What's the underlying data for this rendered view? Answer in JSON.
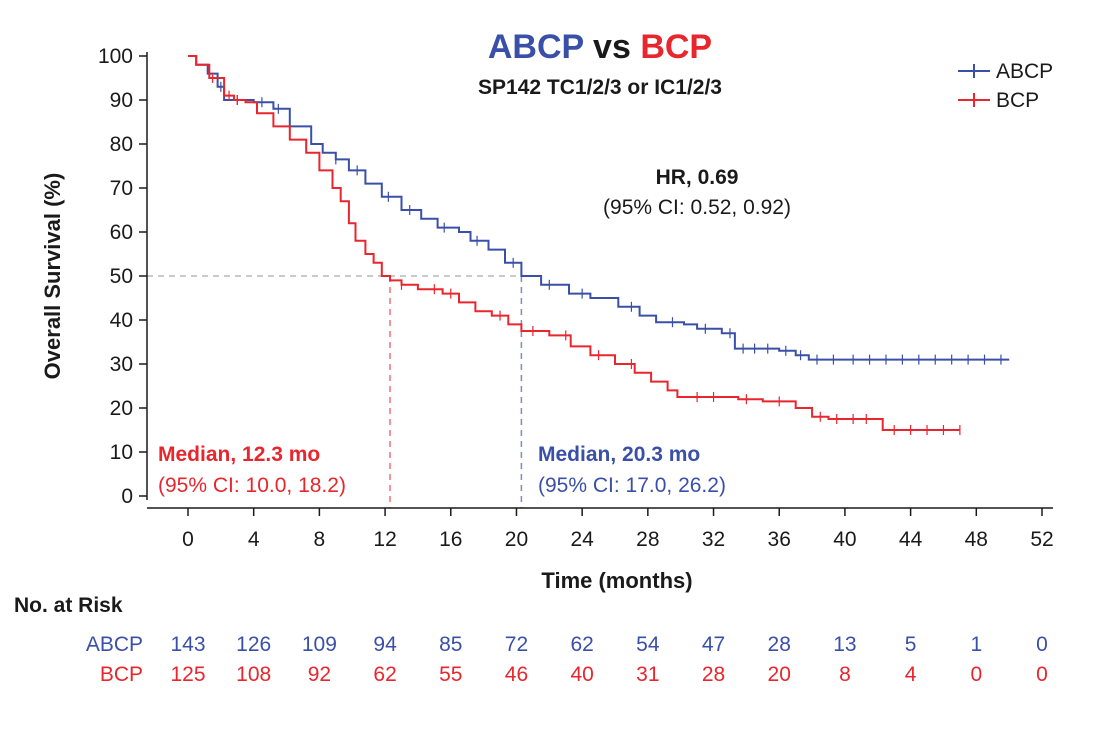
{
  "colors": {
    "abcp": "#3a50a8",
    "bcp": "#e8262d",
    "text": "#1a1a1a",
    "ref": "#b8b8b8"
  },
  "title": {
    "part1": "ABCP",
    "mid": " vs ",
    "part2": "BCP"
  },
  "subtitle": "SP142 TC1/2/3 or IC1/2/3",
  "chart_data": {
    "type": "line",
    "xlabel": "Time (months)",
    "ylabel": "Overall Survival (%)",
    "xlim": [
      0,
      52
    ],
    "ylim": [
      0,
      100
    ],
    "xticks": [
      0,
      4,
      8,
      12,
      16,
      20,
      24,
      28,
      32,
      36,
      40,
      44,
      48,
      52
    ],
    "yticks": [
      0,
      10,
      20,
      30,
      40,
      50,
      60,
      70,
      80,
      90,
      100
    ],
    "grid": false,
    "legend_position": "top-right",
    "series": [
      {
        "name": "ABCP",
        "color": "#3a50a8",
        "points": [
          [
            0,
            100
          ],
          [
            0.5,
            98
          ],
          [
            1.2,
            96
          ],
          [
            1.8,
            93
          ],
          [
            2.2,
            90
          ],
          [
            4,
            89.5
          ],
          [
            5.2,
            88
          ],
          [
            6.2,
            84
          ],
          [
            7.5,
            80
          ],
          [
            8.2,
            78
          ],
          [
            9,
            76.5
          ],
          [
            9.8,
            74
          ],
          [
            10.8,
            71
          ],
          [
            11.8,
            68
          ],
          [
            13,
            65
          ],
          [
            14.2,
            63
          ],
          [
            15.2,
            61
          ],
          [
            16.5,
            60
          ],
          [
            17.2,
            58
          ],
          [
            18.3,
            56
          ],
          [
            19.3,
            53
          ],
          [
            20.3,
            50
          ],
          [
            21.5,
            48
          ],
          [
            23.2,
            46
          ],
          [
            24.5,
            45
          ],
          [
            26.2,
            43
          ],
          [
            27.5,
            41
          ],
          [
            28.5,
            39.5
          ],
          [
            30.2,
            39
          ],
          [
            31,
            38
          ],
          [
            32.5,
            37
          ],
          [
            33.3,
            33.5
          ],
          [
            36,
            33
          ],
          [
            37,
            32
          ],
          [
            37.8,
            31
          ],
          [
            40,
            31
          ],
          [
            46,
            31
          ],
          [
            50,
            31
          ]
        ],
        "censor": [
          2,
          3,
          4.5,
          5.5,
          9,
          10.3,
          12.2,
          13.5,
          15.6,
          17.6,
          19.8,
          22,
          24,
          27,
          29.5,
          31.5,
          33,
          33.8,
          34.5,
          35.3,
          36.4,
          37.3,
          38.3,
          39.3,
          40.5,
          41.5,
          42.5,
          43.5,
          44.5,
          45.5,
          46.5,
          47.5,
          48.5,
          49.5
        ]
      },
      {
        "name": "BCP",
        "color": "#e8262d",
        "points": [
          [
            0,
            100
          ],
          [
            0.5,
            98
          ],
          [
            1.3,
            95
          ],
          [
            2.2,
            91
          ],
          [
            2.8,
            90
          ],
          [
            3.5,
            89.5
          ],
          [
            4.2,
            87
          ],
          [
            5.2,
            84
          ],
          [
            6.2,
            81
          ],
          [
            7.2,
            78
          ],
          [
            8,
            74
          ],
          [
            8.8,
            70
          ],
          [
            9.3,
            67
          ],
          [
            9.8,
            62
          ],
          [
            10.2,
            58
          ],
          [
            10.8,
            55
          ],
          [
            11.3,
            53
          ],
          [
            11.8,
            50
          ],
          [
            12.3,
            49
          ],
          [
            13,
            48
          ],
          [
            14,
            47
          ],
          [
            15.5,
            46
          ],
          [
            16.5,
            44
          ],
          [
            17.5,
            42
          ],
          [
            18.5,
            41
          ],
          [
            19.5,
            39
          ],
          [
            20.3,
            37.5
          ],
          [
            22,
            36.5
          ],
          [
            23.3,
            34
          ],
          [
            24.5,
            32
          ],
          [
            26,
            30
          ],
          [
            27.2,
            28
          ],
          [
            28.2,
            26
          ],
          [
            29.2,
            24
          ],
          [
            29.8,
            22.5
          ],
          [
            33,
            22.5
          ],
          [
            33.5,
            22
          ],
          [
            35,
            21.5
          ],
          [
            37,
            20
          ],
          [
            38,
            18
          ],
          [
            39,
            17.5
          ],
          [
            42,
            17.5
          ],
          [
            42.3,
            15
          ],
          [
            47,
            15
          ]
        ],
        "censor": [
          1.5,
          2.5,
          3,
          13,
          15,
          16,
          19,
          21,
          23,
          25,
          27,
          31,
          32,
          34,
          36,
          38.5,
          39.5,
          40.5,
          41.3,
          43,
          44,
          45,
          46,
          47
        ]
      }
    ],
    "reference_line": {
      "y": 50
    },
    "medians": [
      {
        "series": "ABCP",
        "x": 20.3,
        "label": "Median, 20.3 mo",
        "ci": "(95% CI: 17.0, 26.2)"
      },
      {
        "series": "BCP",
        "x": 12.3,
        "label": "Median, 12.3 mo",
        "ci": "(95% CI: 10.0, 18.2)"
      }
    ],
    "hazard_ratio": {
      "label": "HR, 0.69",
      "ci": "(95% CI: 0.52, 0.92)"
    }
  },
  "risk_table": {
    "title": "No. at Risk",
    "rows": [
      {
        "name": "ABCP",
        "color": "#3a50a8",
        "values": [
          143,
          126,
          109,
          94,
          85,
          72,
          62,
          54,
          47,
          28,
          13,
          5,
          1,
          0
        ]
      },
      {
        "name": "BCP",
        "color": "#e8262d",
        "values": [
          125,
          108,
          92,
          62,
          55,
          46,
          40,
          31,
          28,
          20,
          8,
          4,
          0,
          0
        ]
      }
    ]
  }
}
